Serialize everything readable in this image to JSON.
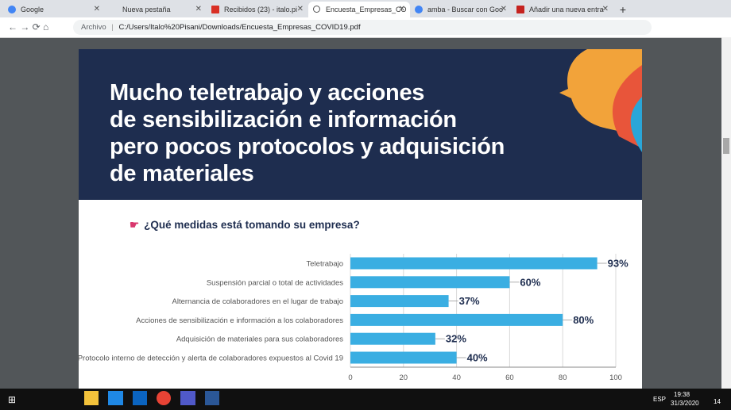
{
  "browser": {
    "tabs": [
      "Google",
      "Nueva pestaña",
      "Recibidos (23) - italo.pi",
      "Encuesta_Empresas_CO",
      "amba - Buscar con Goo",
      "Añadir una nueva entra"
    ],
    "address": {
      "prefix": "Archivo",
      "url": "C:/Users/Italo%20Pisani/Downloads/Encuesta_Empresas_COVID19.pdf"
    }
  },
  "document": {
    "heading": [
      "Mucho teletrabajo y acciones",
      "de sensibilización e información",
      "pero pocos protocolos y adquisición",
      "de materiales"
    ],
    "question": "¿Qué medidas está tomando su empresa?"
  },
  "chart_data": {
    "type": "bar",
    "orientation": "horizontal",
    "categories": [
      "Teletrabajo",
      "Suspensión parcial o total de actividades",
      "Alternancia de colaboradores en el lugar de trabajo",
      "Acciones de sensibilización e información a los colaboradores",
      "Adquisición de materiales para sus colaboradores",
      "Protocolo interno de detección y alerta de colaboradores expuestos al Covid 19"
    ],
    "values": [
      93,
      60,
      37,
      80,
      32,
      40
    ],
    "value_labels": [
      "93%",
      "60%",
      "37%",
      "80%",
      "32%",
      "40%"
    ],
    "color": "#3aaee2",
    "xlim": [
      0,
      100
    ],
    "xticks": [
      0,
      20,
      40,
      60,
      80,
      100
    ],
    "grid": true
  },
  "taskbar": {
    "language": "ESP",
    "time": "19:38",
    "date": "31/3/2020",
    "notifications": "14"
  }
}
